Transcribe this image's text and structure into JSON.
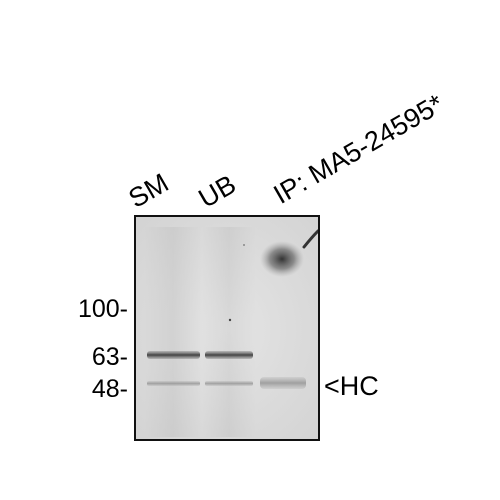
{
  "lanes": {
    "sm": "SM",
    "ub": "UB",
    "ip": "IP: MA5-24595*"
  },
  "markers": {
    "m100": "100-",
    "m63": "63-",
    "m48": "48-"
  },
  "band_label": "<HC",
  "colors": {
    "membrane": "#dcdcdc",
    "band": "#3a3a3a",
    "border": "#111111"
  }
}
